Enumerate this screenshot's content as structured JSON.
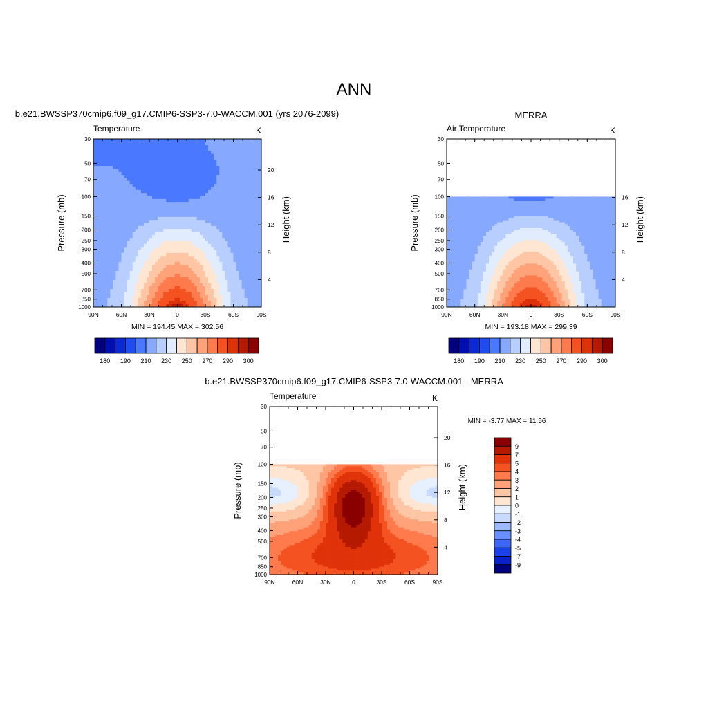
{
  "figure": {
    "main_title": "ANN",
    "palette_abs": [
      "#00007f",
      "#0010b0",
      "#0a2ad8",
      "#1f4cf2",
      "#4a78ff",
      "#86a8ff",
      "#b8ceff",
      "#e2ecff",
      "#ffe6d2",
      "#ffc6a6",
      "#ffa27a",
      "#ff7a4c",
      "#f55222",
      "#de3208",
      "#b51a00",
      "#8a0000"
    ],
    "palette_diff": [
      "#00007f",
      "#0a20c8",
      "#1c40ea",
      "#3d66fb",
      "#6a90ff",
      "#9cb8ff",
      "#c8dbff",
      "#e6f0ff",
      "#ffe6d2",
      "#ffc6a6",
      "#ffa27a",
      "#ff7a4c",
      "#f55222",
      "#e0330a",
      "#b51a00",
      "#8a0000"
    ]
  },
  "chart_data": [
    {
      "type": "heatmap",
      "title": "b.e21.BWSSP370cmip6.f09_g17.CMIP6-SSP3-7.0-WACCM.001 (yrs 2076-2099)",
      "left_label": "Temperature",
      "right_label": "K",
      "ylabel": "Pressure (mb)",
      "ylabel_right": "Height (km)",
      "x_ticks": [
        "90N",
        "60N",
        "30N",
        "0",
        "30S",
        "60S",
        "90S"
      ],
      "y_ticks": [
        30,
        50,
        70,
        100,
        150,
        200,
        250,
        300,
        400,
        500,
        700,
        850,
        1000
      ],
      "height_ticks": [
        4,
        8,
        12,
        16,
        20
      ],
      "ylim": [
        1000,
        30
      ],
      "xlim": [
        90,
        -90
      ],
      "stats": "MIN = 194.45  MAX = 302.56",
      "min": 194.45,
      "max": 302.56,
      "top_pressure": 30,
      "colorbar_labels": [
        "180",
        "190",
        "210",
        "230",
        "250",
        "270",
        "290",
        "300"
      ],
      "color_levels": [
        180,
        185,
        190,
        200,
        210,
        220,
        230,
        240,
        250,
        260,
        270,
        280,
        290,
        295,
        300
      ]
    },
    {
      "type": "heatmap",
      "title": "MERRA",
      "left_label": "Air Temperature",
      "right_label": "K",
      "ylabel": "Pressure (mb)",
      "ylabel_right": "Height (km)",
      "x_ticks": [
        "90N",
        "60N",
        "30N",
        "0",
        "30S",
        "60S",
        "90S"
      ],
      "y_ticks": [
        30,
        50,
        70,
        100,
        150,
        200,
        250,
        300,
        400,
        500,
        700,
        850,
        1000
      ],
      "height_ticks": [
        4,
        8,
        12,
        16
      ],
      "ylim": [
        1000,
        30
      ],
      "xlim": [
        90,
        -90
      ],
      "stats": "MIN = 193.18  MAX = 299.39",
      "min": 193.18,
      "max": 299.39,
      "top_pressure": 100,
      "colorbar_labels": [
        "180",
        "190",
        "210",
        "230",
        "250",
        "270",
        "290",
        "300"
      ],
      "color_levels": [
        180,
        185,
        190,
        200,
        210,
        220,
        230,
        240,
        250,
        260,
        270,
        280,
        290,
        295,
        300
      ]
    },
    {
      "type": "heatmap",
      "title": "b.e21.BWSSP370cmip6.f09_g17.CMIP6-SSP3-7.0-WACCM.001 - MERRA",
      "left_label": "Temperature",
      "right_label": "K",
      "ylabel": "Pressure (mb)",
      "ylabel_right": "Height (km)",
      "x_ticks": [
        "90N",
        "60N",
        "30N",
        "0",
        "30S",
        "60S",
        "90S"
      ],
      "y_ticks": [
        30,
        50,
        70,
        100,
        150,
        200,
        250,
        300,
        400,
        500,
        700,
        850,
        1000
      ],
      "height_ticks": [
        4,
        8,
        12,
        16,
        20
      ],
      "ylim": [
        1000,
        30
      ],
      "xlim": [
        90,
        -90
      ],
      "stats": "MIN =  -3.77  MAX =  11.56",
      "min": -3.77,
      "max": 11.56,
      "top_pressure": 100,
      "colorbar_labels": [
        "9",
        "7",
        "5",
        "4",
        "3",
        "2",
        "1",
        "0",
        "-1",
        "-2",
        "-3",
        "-4",
        "-5",
        "-7",
        "-9"
      ],
      "color_levels": [
        -9,
        -7,
        -5,
        -4,
        -3,
        -2,
        -1,
        0,
        1,
        2,
        3,
        4,
        5,
        7,
        9
      ]
    }
  ]
}
